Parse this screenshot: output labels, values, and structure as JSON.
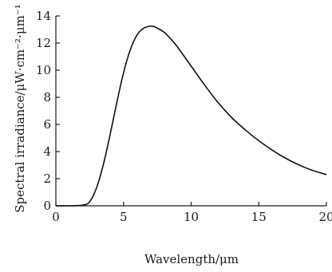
{
  "chart_data": {
    "type": "line",
    "xlabel": "Wavelength/μm",
    "ylabel": "Spectral irradiance/μW·cm⁻²·μm⁻¹",
    "xlim": [
      0,
      20
    ],
    "ylim": [
      0,
      14
    ],
    "xticks": [
      0,
      5,
      10,
      15,
      20
    ],
    "yticks": [
      0,
      2,
      4,
      6,
      8,
      10,
      12,
      14
    ],
    "grid": false,
    "series": [
      {
        "color": "#111111",
        "x": [
          0,
          1,
          2,
          2.5,
          3,
          3.5,
          4,
          4.5,
          5,
          5.5,
          6,
          6.5,
          7,
          7.3,
          7.5,
          8,
          8.5,
          9,
          10,
          11,
          12,
          13,
          14,
          15,
          16,
          17,
          18,
          19,
          20
        ],
        "y": [
          0,
          0,
          0.05,
          0.3,
          1.3,
          3.0,
          5.2,
          7.6,
          9.8,
          11.5,
          12.6,
          13.1,
          13.25,
          13.2,
          13.1,
          12.8,
          12.3,
          11.7,
          10.3,
          8.9,
          7.6,
          6.5,
          5.6,
          4.8,
          4.1,
          3.5,
          3.0,
          2.6,
          2.3
        ]
      }
    ]
  }
}
